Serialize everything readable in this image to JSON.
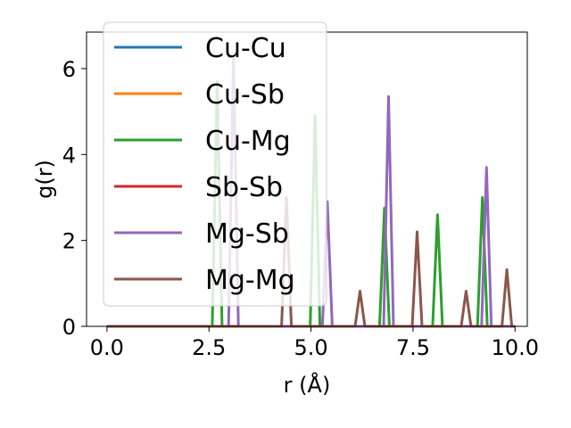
{
  "chart_data": {
    "type": "line",
    "title": "",
    "xlabel": "r (Å)",
    "ylabel": "g(r)",
    "xlim": [
      -0.5,
      10.3
    ],
    "ylim": [
      0,
      6.85
    ],
    "xticks": [
      0.0,
      2.5,
      5.0,
      7.5,
      10.0
    ],
    "xtick_labels": [
      "0.0",
      "2.5",
      "5.0",
      "7.5",
      "10.0"
    ],
    "yticks": [
      0,
      2,
      4,
      6
    ],
    "ytick_labels": [
      "0",
      "2",
      "4",
      "6"
    ],
    "grid": false,
    "legend_position": "top-left",
    "peak_half_width": 0.12,
    "series": [
      {
        "name": "Cu-Cu",
        "color": "#1f77b4",
        "peaks": []
      },
      {
        "name": "Cu-Sb",
        "color": "#ff7f0e",
        "peaks": []
      },
      {
        "name": "Cu-Mg",
        "color": "#2ca02c",
        "peaks": [
          [
            2.7,
            5.7
          ],
          [
            5.1,
            4.9
          ],
          [
            6.8,
            2.75
          ],
          [
            8.1,
            2.6
          ],
          [
            9.2,
            3.0
          ]
        ]
      },
      {
        "name": "Sb-Sb",
        "color": "#d62728",
        "peaks": []
      },
      {
        "name": "Mg-Sb",
        "color": "#9467bd",
        "peaks": [
          [
            3.1,
            6.3
          ],
          [
            5.4,
            2.9
          ],
          [
            6.9,
            5.35
          ],
          [
            9.3,
            3.7
          ]
        ]
      },
      {
        "name": "Mg-Mg",
        "color": "#8c564b",
        "peaks": [
          [
            4.4,
            3.0
          ],
          [
            6.2,
            0.82
          ],
          [
            7.6,
            2.2
          ],
          [
            8.8,
            0.82
          ],
          [
            9.8,
            1.32
          ]
        ]
      }
    ]
  }
}
